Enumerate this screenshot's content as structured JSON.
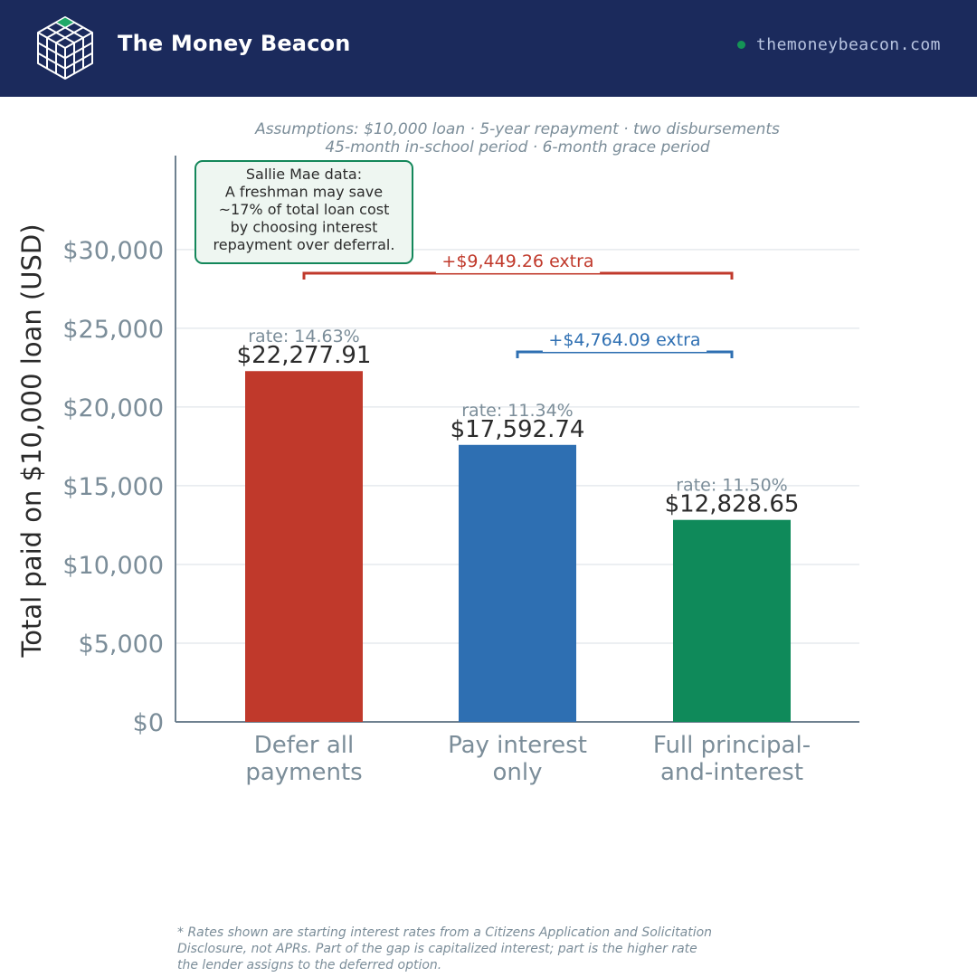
{
  "header": {
    "brand": "The Money Beacon",
    "site": "themoneybeacon.com",
    "colors": {
      "background": "#1b2a5c",
      "accent": "#159456"
    },
    "logo_icon": "cube-grid-icon"
  },
  "assumptions": {
    "line1": "Assumptions: $10,000 loan · 5-year repayment · two disbursements",
    "line2": "45-month in-school period · 6-month grace period"
  },
  "callout": {
    "lines": [
      "Sallie Mae data:",
      "A freshman may save",
      "~17% of total loan cost",
      "by choosing interest",
      "repayment over deferral."
    ],
    "border_color": "#13875a"
  },
  "chart_data": {
    "type": "bar",
    "categories": [
      [
        "Defer all",
        "payments"
      ],
      [
        "Pay interest",
        "only"
      ],
      [
        "Full principal-",
        "and-interest"
      ]
    ],
    "values": [
      22277.91,
      17592.74,
      12828.65
    ],
    "value_labels": [
      "$22,277.91",
      "$17,592.74",
      "$12,828.65"
    ],
    "rates": [
      "rate: 14.63%",
      "rate: 11.34%",
      "rate: 11.50%"
    ],
    "colors": [
      "#c0392b",
      "#2e6fb2",
      "#0f8a5a"
    ],
    "ylabel": "Total paid on $10,000 loan (USD)",
    "ylim": [
      0,
      36000
    ],
    "yticks": [
      0,
      5000,
      10000,
      15000,
      20000,
      25000,
      30000
    ],
    "ytick_labels": [
      "$0",
      "$5,000",
      "$10,000",
      "$15,000",
      "$20,000",
      "$25,000",
      "$30,000"
    ],
    "grid": true,
    "brackets": [
      {
        "from": 0,
        "to": 2,
        "label": "+$9,449.26 extra",
        "color": "#c0392b",
        "value": 28500
      },
      {
        "from": 1,
        "to": 2,
        "label": "+$4,764.09 extra",
        "color": "#2e6fb2",
        "value": 23500
      }
    ]
  },
  "footnote": "* Rates shown are starting interest rates from a Citizens Application and Solicitation\n  Disclosure, not APRs. Part of the gap is capitalized interest; part is the higher rate\n  the lender assigns to the deferred option."
}
